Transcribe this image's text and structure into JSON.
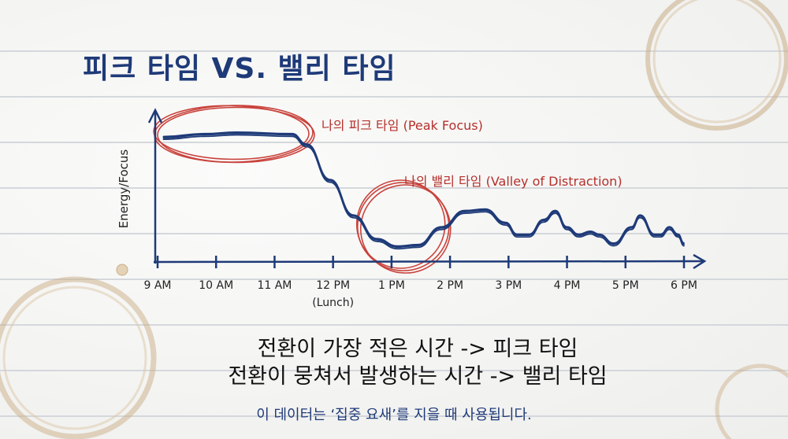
{
  "title": "피크 타임 VS. 밸리 타임",
  "chart_data": {
    "type": "line",
    "title": "피크 타임 VS. 밸리 타임",
    "xlabel": "",
    "ylabel": "Energy/Focus",
    "x_ticks": [
      "9 AM",
      "10 AM",
      "11 AM",
      "12 PM",
      "1 PM",
      "2 PM",
      "3 PM",
      "4 PM",
      "5 PM",
      "6 PM"
    ],
    "x_tick_sublabels": {
      "12 PM": "(Lunch)"
    },
    "xlim": [
      9,
      18
    ],
    "ylim": [
      0,
      10
    ],
    "grid": false,
    "series": [
      {
        "x": [
          9.1,
          9.8,
          10.35,
          11.3,
          11.55,
          11.95,
          12.35,
          12.75,
          13.1,
          13.45,
          13.85,
          14.25,
          14.6,
          14.95,
          15.15,
          15.35,
          15.6,
          15.8,
          16.0,
          16.2,
          16.4,
          16.55,
          16.8,
          17.1,
          17.25,
          17.5,
          17.6,
          17.75,
          17.9,
          18.0
        ],
        "y": [
          8.4,
          8.6,
          8.7,
          8.6,
          7.9,
          5.5,
          3.1,
          1.5,
          1.0,
          1.1,
          2.3,
          3.4,
          3.5,
          2.6,
          1.8,
          1.8,
          2.8,
          3.4,
          2.3,
          1.8,
          2.0,
          1.8,
          1.2,
          2.3,
          3.1,
          1.8,
          1.8,
          2.3,
          1.8,
          1.2
        ],
        "color": "#1e3a78"
      }
    ],
    "annotations": [
      {
        "text": "나의 피크 타임 (Peak Focus)",
        "x_range": [
          9,
          11.6
        ],
        "color": "#b5302b"
      },
      {
        "text": "나의 밸리 타임 (Valley of Distraction)",
        "x_range": [
          12.4,
          14
        ],
        "color": "#b5302b"
      }
    ]
  },
  "summary": [
    "전환이 가장 적은 시간 -> 피크 타임",
    "전환이 뭉쳐서 발생하는 시간 -> 밸리 타임"
  ],
  "footer": "이 데이터는 ‘집중 요새’를 지을 때 사용됩니다."
}
